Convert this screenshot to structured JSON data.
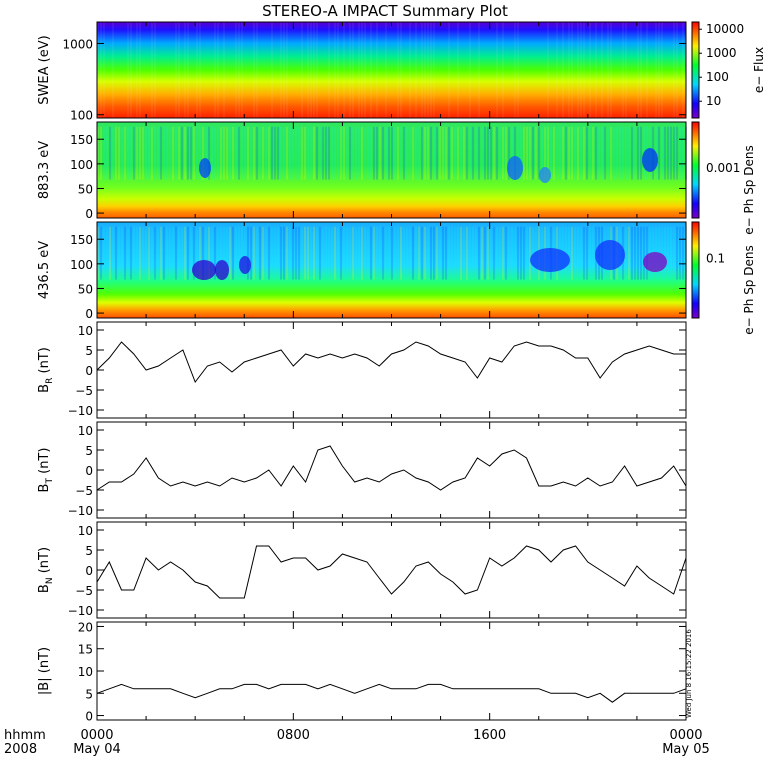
{
  "title": "STEREO-A IMPACT Summary Plot",
  "stamp": "Wed Jun  8 16:15:22 2016",
  "time_axis": {
    "corner_labels": [
      "hhmm",
      "2008"
    ],
    "ticks": [
      {
        "time": "0000",
        "date": "May 04",
        "hour": 0
      },
      {
        "time": "0800",
        "date": "",
        "hour": 8
      },
      {
        "time": "1600",
        "date": "",
        "hour": 16
      },
      {
        "time": "0000",
        "date": "May 05",
        "hour": 24
      }
    ],
    "range_hours": [
      0,
      24
    ]
  },
  "colors": {
    "trace": "#000000",
    "frame": "#000000"
  },
  "chart_data": [
    {
      "type": "heatmap",
      "id": "swea",
      "ylabel": "SWEA (eV)",
      "yscale": "log",
      "ylim": [
        90,
        2000
      ],
      "yticks": [
        100,
        1000
      ],
      "ytick_labels": [
        "100",
        "1000"
      ],
      "colorbar": {
        "label": "e− Flux",
        "scale": "log",
        "range": [
          2,
          20000
        ],
        "ticks": [
          10,
          100,
          1000,
          10000
        ],
        "tick_labels": [
          "10",
          "100",
          "1000",
          "10000"
        ],
        "palette": "rainbow (purple → blue → cyan → green → yellow → red)"
      },
      "description_values": "flux decreasing with energy: red near 100 eV, yellow-green ~300-600 eV, blue-purple near 2000 eV"
    },
    {
      "type": "heatmap",
      "id": "pad883",
      "ylabel": "883.3 eV",
      "ylim": [
        -10,
        185
      ],
      "yticks": [
        0,
        50,
        100,
        150
      ],
      "ytick_labels": [
        "0",
        "50",
        "100",
        "150"
      ],
      "colorbar": {
        "label": "e− Ph Sp Dens",
        "tick_labels": [
          "0.001"
        ],
        "palette": "rainbow"
      }
    },
    {
      "type": "heatmap",
      "id": "pad436",
      "ylabel": "436.5 eV",
      "ylim": [
        -10,
        185
      ],
      "yticks": [
        0,
        50,
        100,
        150
      ],
      "ytick_labels": [
        "0",
        "50",
        "100",
        "150"
      ],
      "colorbar": {
        "label": "e− Ph Sp Dens",
        "tick_labels": [
          "0.1"
        ],
        "palette": "rainbow"
      }
    },
    {
      "type": "line",
      "id": "br",
      "ylabel_main": "B",
      "ylabel_sub": "R",
      "ylabel_unit": " (nT)",
      "ylim": [
        -12,
        12
      ],
      "yticks": [
        -10,
        -5,
        0,
        5,
        10
      ],
      "ytick_labels": [
        "−10",
        "−5",
        "0",
        "5",
        "10"
      ],
      "x_hours": [
        0,
        0.5,
        1,
        1.5,
        2,
        2.5,
        3,
        3.5,
        4,
        4.5,
        5,
        5.5,
        6,
        6.5,
        7,
        7.5,
        8,
        8.5,
        9,
        9.5,
        10,
        10.5,
        11,
        11.5,
        12,
        12.5,
        13,
        13.5,
        14,
        14.5,
        15,
        15.5,
        16,
        16.5,
        17,
        17.5,
        18,
        18.5,
        19,
        19.5,
        20,
        20.5,
        21,
        21.5,
        22,
        22.5,
        23,
        23.5,
        24
      ],
      "values": [
        0,
        3,
        7,
        4,
        0,
        1,
        3,
        5,
        -3,
        1,
        2,
        -0.5,
        2,
        3,
        4,
        5,
        1,
        4,
        3,
        4,
        3,
        4,
        3,
        1,
        4,
        5,
        7,
        6,
        4,
        3,
        2,
        -2,
        3,
        2,
        6,
        7,
        6,
        6,
        5,
        3,
        3,
        -2,
        2,
        4,
        5,
        6,
        5,
        4,
        4
      ]
    },
    {
      "type": "line",
      "id": "bt",
      "ylabel_main": "B",
      "ylabel_sub": "T",
      "ylabel_unit": " (nT)",
      "ylim": [
        -12,
        12
      ],
      "yticks": [
        -10,
        -5,
        0,
        5,
        10
      ],
      "ytick_labels": [
        "−10",
        "−5",
        "0",
        "5",
        "10"
      ],
      "x_hours": [
        0,
        0.5,
        1,
        1.5,
        2,
        2.5,
        3,
        3.5,
        4,
        4.5,
        5,
        5.5,
        6,
        6.5,
        7,
        7.5,
        8,
        8.5,
        9,
        9.5,
        10,
        10.5,
        11,
        11.5,
        12,
        12.5,
        13,
        13.5,
        14,
        14.5,
        15,
        15.5,
        16,
        16.5,
        17,
        17.5,
        18,
        18.5,
        19,
        19.5,
        20,
        20.5,
        21,
        21.5,
        22,
        22.5,
        23,
        23.5,
        24
      ],
      "values": [
        -5,
        -3,
        -3,
        -1,
        3,
        -2,
        -4,
        -3,
        -4,
        -3,
        -4,
        -2,
        -3,
        -2,
        0,
        -4,
        1,
        -3,
        5,
        6,
        1,
        -3,
        -2,
        -3,
        -1,
        0,
        -2,
        -3,
        -5,
        -3,
        -2,
        3,
        1,
        4,
        5,
        3,
        -4,
        -4,
        -3,
        -4,
        -2,
        -4,
        -3,
        1,
        -4,
        -3,
        -2,
        1,
        -4
      ]
    },
    {
      "type": "line",
      "id": "bn",
      "ylabel_main": "B",
      "ylabel_sub": "N",
      "ylabel_unit": " (nT)",
      "ylim": [
        -12,
        12
      ],
      "yticks": [
        -10,
        -5,
        0,
        5,
        10
      ],
      "ytick_labels": [
        "−10",
        "−5",
        "0",
        "5",
        "10"
      ],
      "x_hours": [
        0,
        0.5,
        1,
        1.5,
        2,
        2.5,
        3,
        3.5,
        4,
        4.5,
        5,
        5.5,
        6,
        6.5,
        7,
        7.5,
        8,
        8.5,
        9,
        9.5,
        10,
        10.5,
        11,
        11.5,
        12,
        12.5,
        13,
        13.5,
        14,
        14.5,
        15,
        15.5,
        16,
        16.5,
        17,
        17.5,
        18,
        18.5,
        19,
        19.5,
        20,
        20.5,
        21,
        21.5,
        22,
        22.5,
        23,
        23.5,
        24
      ],
      "values": [
        -3,
        2,
        -5,
        -5,
        3,
        0,
        2,
        0,
        -3,
        -4,
        -7,
        -7,
        -7,
        6,
        6,
        2,
        3,
        3,
        0,
        1,
        4,
        3,
        2,
        -2,
        -6,
        -3,
        1,
        2,
        -1,
        -3,
        -6,
        -5,
        3,
        1,
        3,
        6,
        5,
        2,
        5,
        6,
        2,
        0,
        -2,
        -4,
        1,
        -2,
        -4,
        -6,
        3
      ]
    },
    {
      "type": "line",
      "id": "bmag",
      "ylabel_main": "|B|",
      "ylabel_sub": "",
      "ylabel_unit": " (nT)",
      "ylim": [
        -1,
        21
      ],
      "yticks": [
        0,
        5,
        10,
        15,
        20
      ],
      "ytick_labels": [
        "0",
        "5",
        "10",
        "15",
        "20"
      ],
      "x_hours": [
        0,
        0.5,
        1,
        1.5,
        2,
        2.5,
        3,
        3.5,
        4,
        4.5,
        5,
        5.5,
        6,
        6.5,
        7,
        7.5,
        8,
        8.5,
        9,
        9.5,
        10,
        10.5,
        11,
        11.5,
        12,
        12.5,
        13,
        13.5,
        14,
        14.5,
        15,
        15.5,
        16,
        16.5,
        17,
        17.5,
        18,
        18.5,
        19,
        19.5,
        20,
        20.5,
        21,
        21.5,
        22,
        22.5,
        23,
        23.5,
        24
      ],
      "values": [
        5,
        6,
        7,
        6,
        6,
        6,
        6,
        5,
        4,
        5,
        6,
        6,
        7,
        7,
        6,
        7,
        7,
        7,
        6,
        7,
        6,
        5,
        6,
        7,
        6,
        6,
        6,
        7,
        7,
        6,
        6,
        6,
        6,
        6,
        6,
        6,
        6,
        5,
        5,
        5,
        4,
        5,
        3,
        5,
        5,
        5,
        5,
        5,
        6
      ]
    }
  ]
}
